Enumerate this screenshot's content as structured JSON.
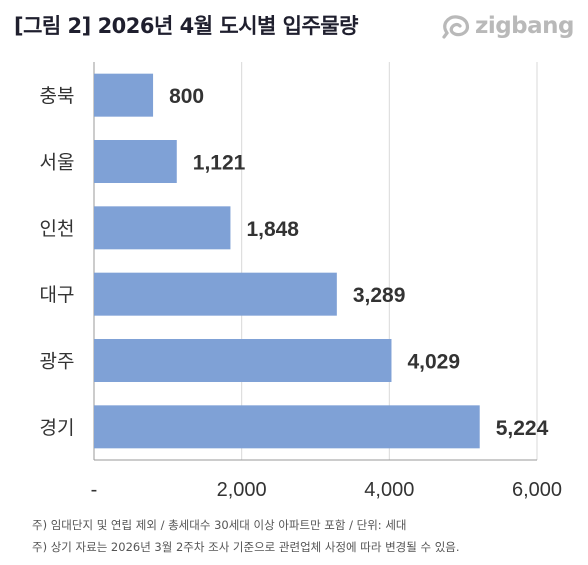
{
  "header": {
    "title": "[그림 2] 2026년 4월 도시별 입주물량",
    "brand": "zigbang",
    "brand_icon": "zigbang-logo-icon"
  },
  "colors": {
    "bar": "#7fa1d6",
    "grid": "#d9d9d9",
    "axis": "#999999",
    "brand_gray": "#b9b9b9"
  },
  "chart_data": {
    "type": "bar",
    "orientation": "horizontal",
    "title": "[그림 2] 2026년 4월 도시별 입주물량",
    "categories": [
      "충북",
      "서울",
      "인천",
      "대구",
      "광주",
      "경기"
    ],
    "values": [
      800,
      1121,
      1848,
      3289,
      4029,
      5224
    ],
    "value_labels": [
      "800",
      "1,121",
      "1,848",
      "3,289",
      "4,029",
      "5,224"
    ],
    "xlim": [
      0,
      6000
    ],
    "xticks": [
      0,
      2000,
      4000,
      6000
    ],
    "xtick_labels": [
      "-",
      "2,000",
      "4,000",
      "6,000"
    ],
    "grid": "vertical",
    "legend": "none",
    "xlabel": "",
    "ylabel": ""
  },
  "notes": [
    "주) 임대단지 및 연립 제외 / 총세대수 30세대 이상 아파트만 포함 / 단위: 세대",
    "주) 상기 자료는 2026년 3월 2주차 조사 기준으로 관련업체 사정에 따라 변경될 수 있음."
  ]
}
